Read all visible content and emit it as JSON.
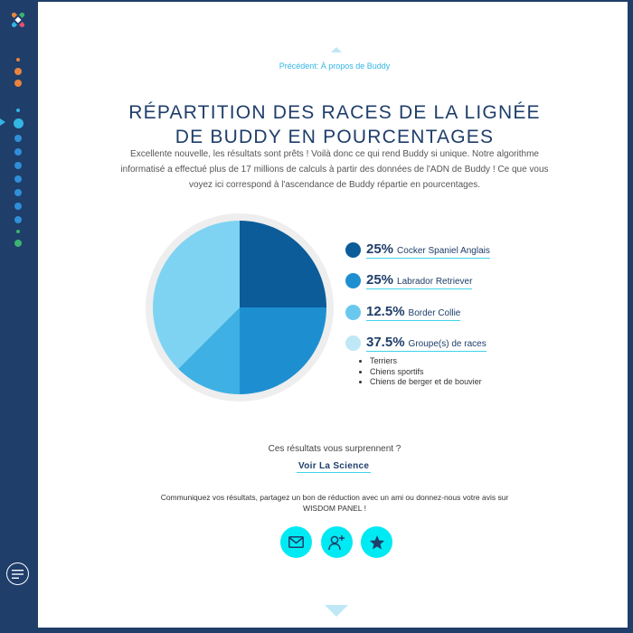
{
  "nav": {
    "logo": "colored-x-logo",
    "dots": [
      {
        "color": "#e8843f",
        "kind": "small"
      },
      {
        "color": "#e8843f",
        "kind": "medium"
      },
      {
        "color": "#e8843f",
        "kind": "medium"
      },
      {
        "color": "#33b5e5",
        "kind": "small"
      },
      {
        "color": "#33b5e5",
        "kind": "large-active"
      },
      {
        "color": "#2f8fd8",
        "kind": "medium"
      },
      {
        "color": "#2f8fd8",
        "kind": "medium"
      },
      {
        "color": "#2f8fd8",
        "kind": "medium"
      },
      {
        "color": "#2f8fd8",
        "kind": "medium"
      },
      {
        "color": "#2f8fd8",
        "kind": "medium"
      },
      {
        "color": "#2f8fd8",
        "kind": "medium"
      },
      {
        "color": "#2f8fd8",
        "kind": "medium"
      },
      {
        "color": "#3cb371",
        "kind": "small"
      },
      {
        "color": "#3cb371",
        "kind": "medium"
      }
    ],
    "menu_icon": "hamburger-icon"
  },
  "page": {
    "prev_link": "Précédent: À propos de Buddy",
    "title_line1": "RÉPARTITION DES RACES DE LA LIGNÉE",
    "title_line2": "DE BUDDY EN POURCENTAGES",
    "intro_line1": "Excellente nouvelle, les résultats sont prêts ! Voilà donc ce qui rend Buddy si unique. Notre algorithme",
    "intro_line2": "informatisé a effectué plus de 17 millions de calculs à partir des données de l'ADN de Buddy ! Ce que vous",
    "intro_line3": "voyez ici correspond à l'ascendance de Buddy répartie en pourcentages."
  },
  "chart_data": {
    "type": "pie",
    "title": "",
    "categories": [
      "Cocker Spaniel Anglais",
      "Labrador Retriever",
      "Border Collie",
      "Groupe(s) de races"
    ],
    "values": [
      25,
      25,
      12.5,
      37.5
    ],
    "labels": [
      "25%",
      "25%",
      "12.5%",
      "37.5%"
    ],
    "colors": [
      "#0c5c9a",
      "#1d8fd1",
      "#3fb0e3",
      "#7fd3f2"
    ],
    "legend_placement": "right",
    "group_sublist": [
      "Terriers",
      "Chiens sportifs",
      "Chiens de berger et de bouvier"
    ]
  },
  "legend_swatch_colors": [
    "#0c5c9a",
    "#1d8fd1",
    "#6ac8ee",
    "#bfe8f7"
  ],
  "cta": {
    "surprise": "Ces résultats vous surprennent ?",
    "science_link": "Voir La Science",
    "share_line1": "Communiquez vos résultats, partagez un bon de réduction avec un ami ou donnez-nous votre avis sur",
    "share_line2": "WISDOM PANEL !"
  },
  "share_buttons": [
    {
      "icon": "email-icon"
    },
    {
      "icon": "add-friend-icon"
    },
    {
      "icon": "star-icon"
    }
  ],
  "colors": {
    "navy": "#1f3e6a",
    "accent_cyan": "#00eaf3",
    "link_blue": "#33b5e5"
  }
}
